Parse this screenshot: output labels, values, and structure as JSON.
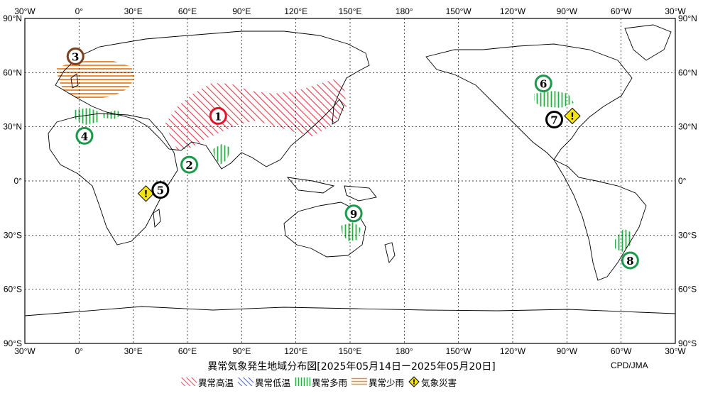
{
  "title": "異常気象発生地域分布図[2025年05月14日ー2025年05月20日]",
  "credit": "CPD/JMA",
  "axes": {
    "top_lon_labels": [
      "30°W",
      "0°",
      "30°E",
      "60°E",
      "90°E",
      "120°E",
      "150°E",
      "180°",
      "150°W",
      "120°W",
      "90°W",
      "60°W",
      "30°W"
    ],
    "bottom_lon_labels": [
      "30°W",
      "0°",
      "30°E",
      "60°E",
      "90°E",
      "120°E",
      "150°E",
      "180°",
      "150°W",
      "120°W",
      "90°W",
      "60°W",
      "30°W"
    ],
    "left_lat_labels": [
      "90°N",
      "60°N",
      "30°N",
      "0°",
      "30°S",
      "60°S",
      "90°S"
    ],
    "right_lat_labels": [
      "90°N",
      "60°N",
      "30°N",
      "0°",
      "30°S",
      "60°S",
      "90°S"
    ]
  },
  "legend": [
    {
      "label": "異常高温",
      "color": "#e8394a",
      "pattern": "diag-red"
    },
    {
      "label": "異常低温",
      "color": "#3a55d6",
      "pattern": "diag-blue"
    },
    {
      "label": "異常多雨",
      "color": "#26b043",
      "pattern": "vert-green"
    },
    {
      "label": "異常少雨",
      "color": "#f08a3c",
      "pattern": "horiz-orange"
    },
    {
      "label": "気象災害",
      "color": "#f5e50b",
      "icon": "warning-diamond-icon"
    }
  ],
  "markers": [
    {
      "num": "1",
      "lon": 77,
      "lat": 36,
      "color": "#e8102a",
      "category": "異常高温"
    },
    {
      "num": "2",
      "lon": 61,
      "lat": 9,
      "color": "#1a9a4a",
      "category": "異常多雨"
    },
    {
      "num": "3",
      "lon": -2,
      "lat": 69,
      "color": "#7b3f1a",
      "category": "異常少雨"
    },
    {
      "num": "4",
      "lon": 3,
      "lat": 25,
      "color": "#1a9a4a",
      "category": "異常多雨"
    },
    {
      "num": "5",
      "lon": 45,
      "lat": -5,
      "color": "#000000",
      "category": "気象災害"
    },
    {
      "num": "6",
      "lon": -103,
      "lat": 54,
      "color": "#1a9a4a",
      "category": "異常多雨"
    },
    {
      "num": "7",
      "lon": -97,
      "lat": 34,
      "color": "#000000",
      "category": "気象災害"
    },
    {
      "num": "8",
      "lon": -55,
      "lat": -44,
      "color": "#1a9a4a",
      "category": "異常多雨"
    },
    {
      "num": "9",
      "lon": 152,
      "lat": -18,
      "color": "#1a9a4a",
      "category": "異常多雨"
    }
  ],
  "disaster_icons": [
    {
      "lon": 37,
      "lat": -7
    },
    {
      "lon": -87,
      "lat": 36
    }
  ]
}
